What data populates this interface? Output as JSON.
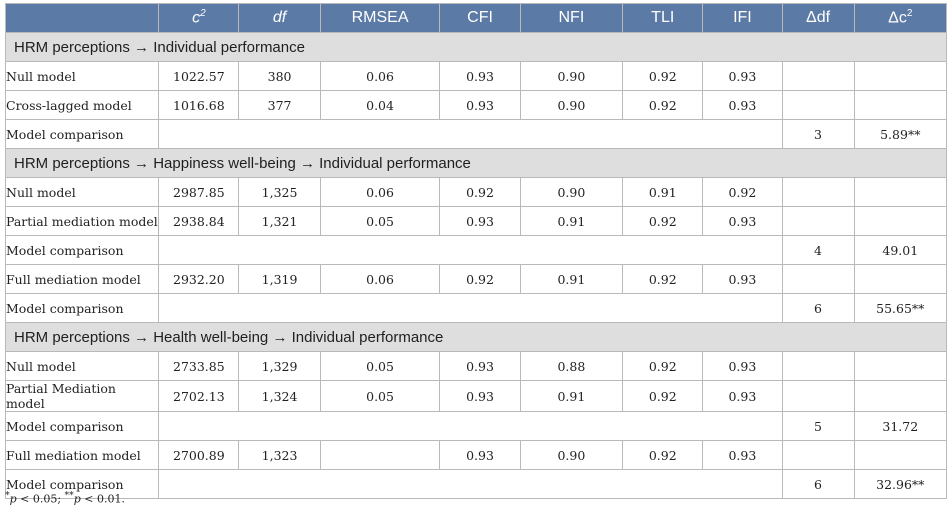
{
  "table": {
    "headers": [
      {
        "text": "c",
        "sup": "2",
        "italic": true
      },
      {
        "text": "df",
        "italic": true
      },
      {
        "text": "RMSEA"
      },
      {
        "text": "CFI"
      },
      {
        "text": "NFI"
      },
      {
        "text": "TLI"
      },
      {
        "text": "IFI"
      },
      {
        "text": "Δdf"
      },
      {
        "text": "Δc",
        "sup": "2"
      }
    ],
    "sections": [
      {
        "title": "HRM perceptions → Individual performance",
        "rows": [
          {
            "label": "Null model",
            "c2": "1022.57",
            "df": "380",
            "rmsea": "0.06",
            "cfi": "0.93",
            "nfi": "0.90",
            "tli": "0.92",
            "ifi": "0.93",
            "ddf": "",
            "dc2": ""
          },
          {
            "label": "Cross-lagged model",
            "c2": "1016.68",
            "df": "377",
            "rmsea": "0.04",
            "cfi": "0.93",
            "nfi": "0.90",
            "tli": "0.92",
            "ifi": "0.93",
            "ddf": "",
            "dc2": ""
          },
          {
            "label": "Model comparison",
            "comparison": true,
            "ddf": "3",
            "dc2": "5.89**"
          }
        ]
      },
      {
        "title": "HRM perceptions → Happiness well-being → Individual performance",
        "rows": [
          {
            "label": "Null model",
            "c2": "2987.85",
            "df": "1,325",
            "rmsea": "0.06",
            "cfi": "0.92",
            "nfi": "0.90",
            "tli": "0.91",
            "ifi": "0.92",
            "ddf": "",
            "dc2": ""
          },
          {
            "label": "Partial mediation model",
            "c2": "2938.84",
            "df": "1,321",
            "rmsea": "0.05",
            "cfi": "0.93",
            "nfi": "0.91",
            "tli": "0.92",
            "ifi": "0.93",
            "ddf": "",
            "dc2": ""
          },
          {
            "label": "Model comparison",
            "comparison": true,
            "ddf": "4",
            "dc2": "49.01"
          },
          {
            "label": "Full mediation model",
            "c2": "2932.20",
            "df": "1,319",
            "rmsea": "0.06",
            "cfi": "0.92",
            "nfi": "0.91",
            "tli": "0.92",
            "ifi": "0.93",
            "ddf": "",
            "dc2": ""
          },
          {
            "label": "Model comparison",
            "comparison": true,
            "ddf": "6",
            "dc2": "55.65**"
          }
        ]
      },
      {
        "title": "HRM perceptions → Health well-being → Individual performance",
        "rows": [
          {
            "label": "Null model",
            "c2": "2733.85",
            "df": "1,329",
            "rmsea": "0.05",
            "cfi": "0.93",
            "nfi": "0.88",
            "tli": "0.92",
            "ifi": "0.93",
            "ddf": "",
            "dc2": ""
          },
          {
            "label": "Partial Mediation model",
            "c2": "2702.13",
            "df": "1,324",
            "rmsea": "0.05",
            "cfi": "0.93",
            "nfi": "0.91",
            "tli": "0.92",
            "ifi": "0.93",
            "ddf": "",
            "dc2": ""
          },
          {
            "label": "Model comparison",
            "comparison": true,
            "ddf": "5",
            "dc2": "31.72"
          },
          {
            "label": "Full mediation model",
            "c2": "2700.89",
            "df": "1,323",
            "rmsea": "",
            "cfi": "0.93",
            "nfi": "0.90",
            "tli": "0.92",
            "ifi": "0.93",
            "ddf": "",
            "dc2": ""
          },
          {
            "label": "Model comparison",
            "comparison": true,
            "ddf": "6",
            "dc2": "32.96**"
          }
        ]
      }
    ]
  },
  "footnote": {
    "p1": "p",
    "t1": " < 0.05; ",
    "p2": "p",
    "t2": " < 0.01."
  }
}
